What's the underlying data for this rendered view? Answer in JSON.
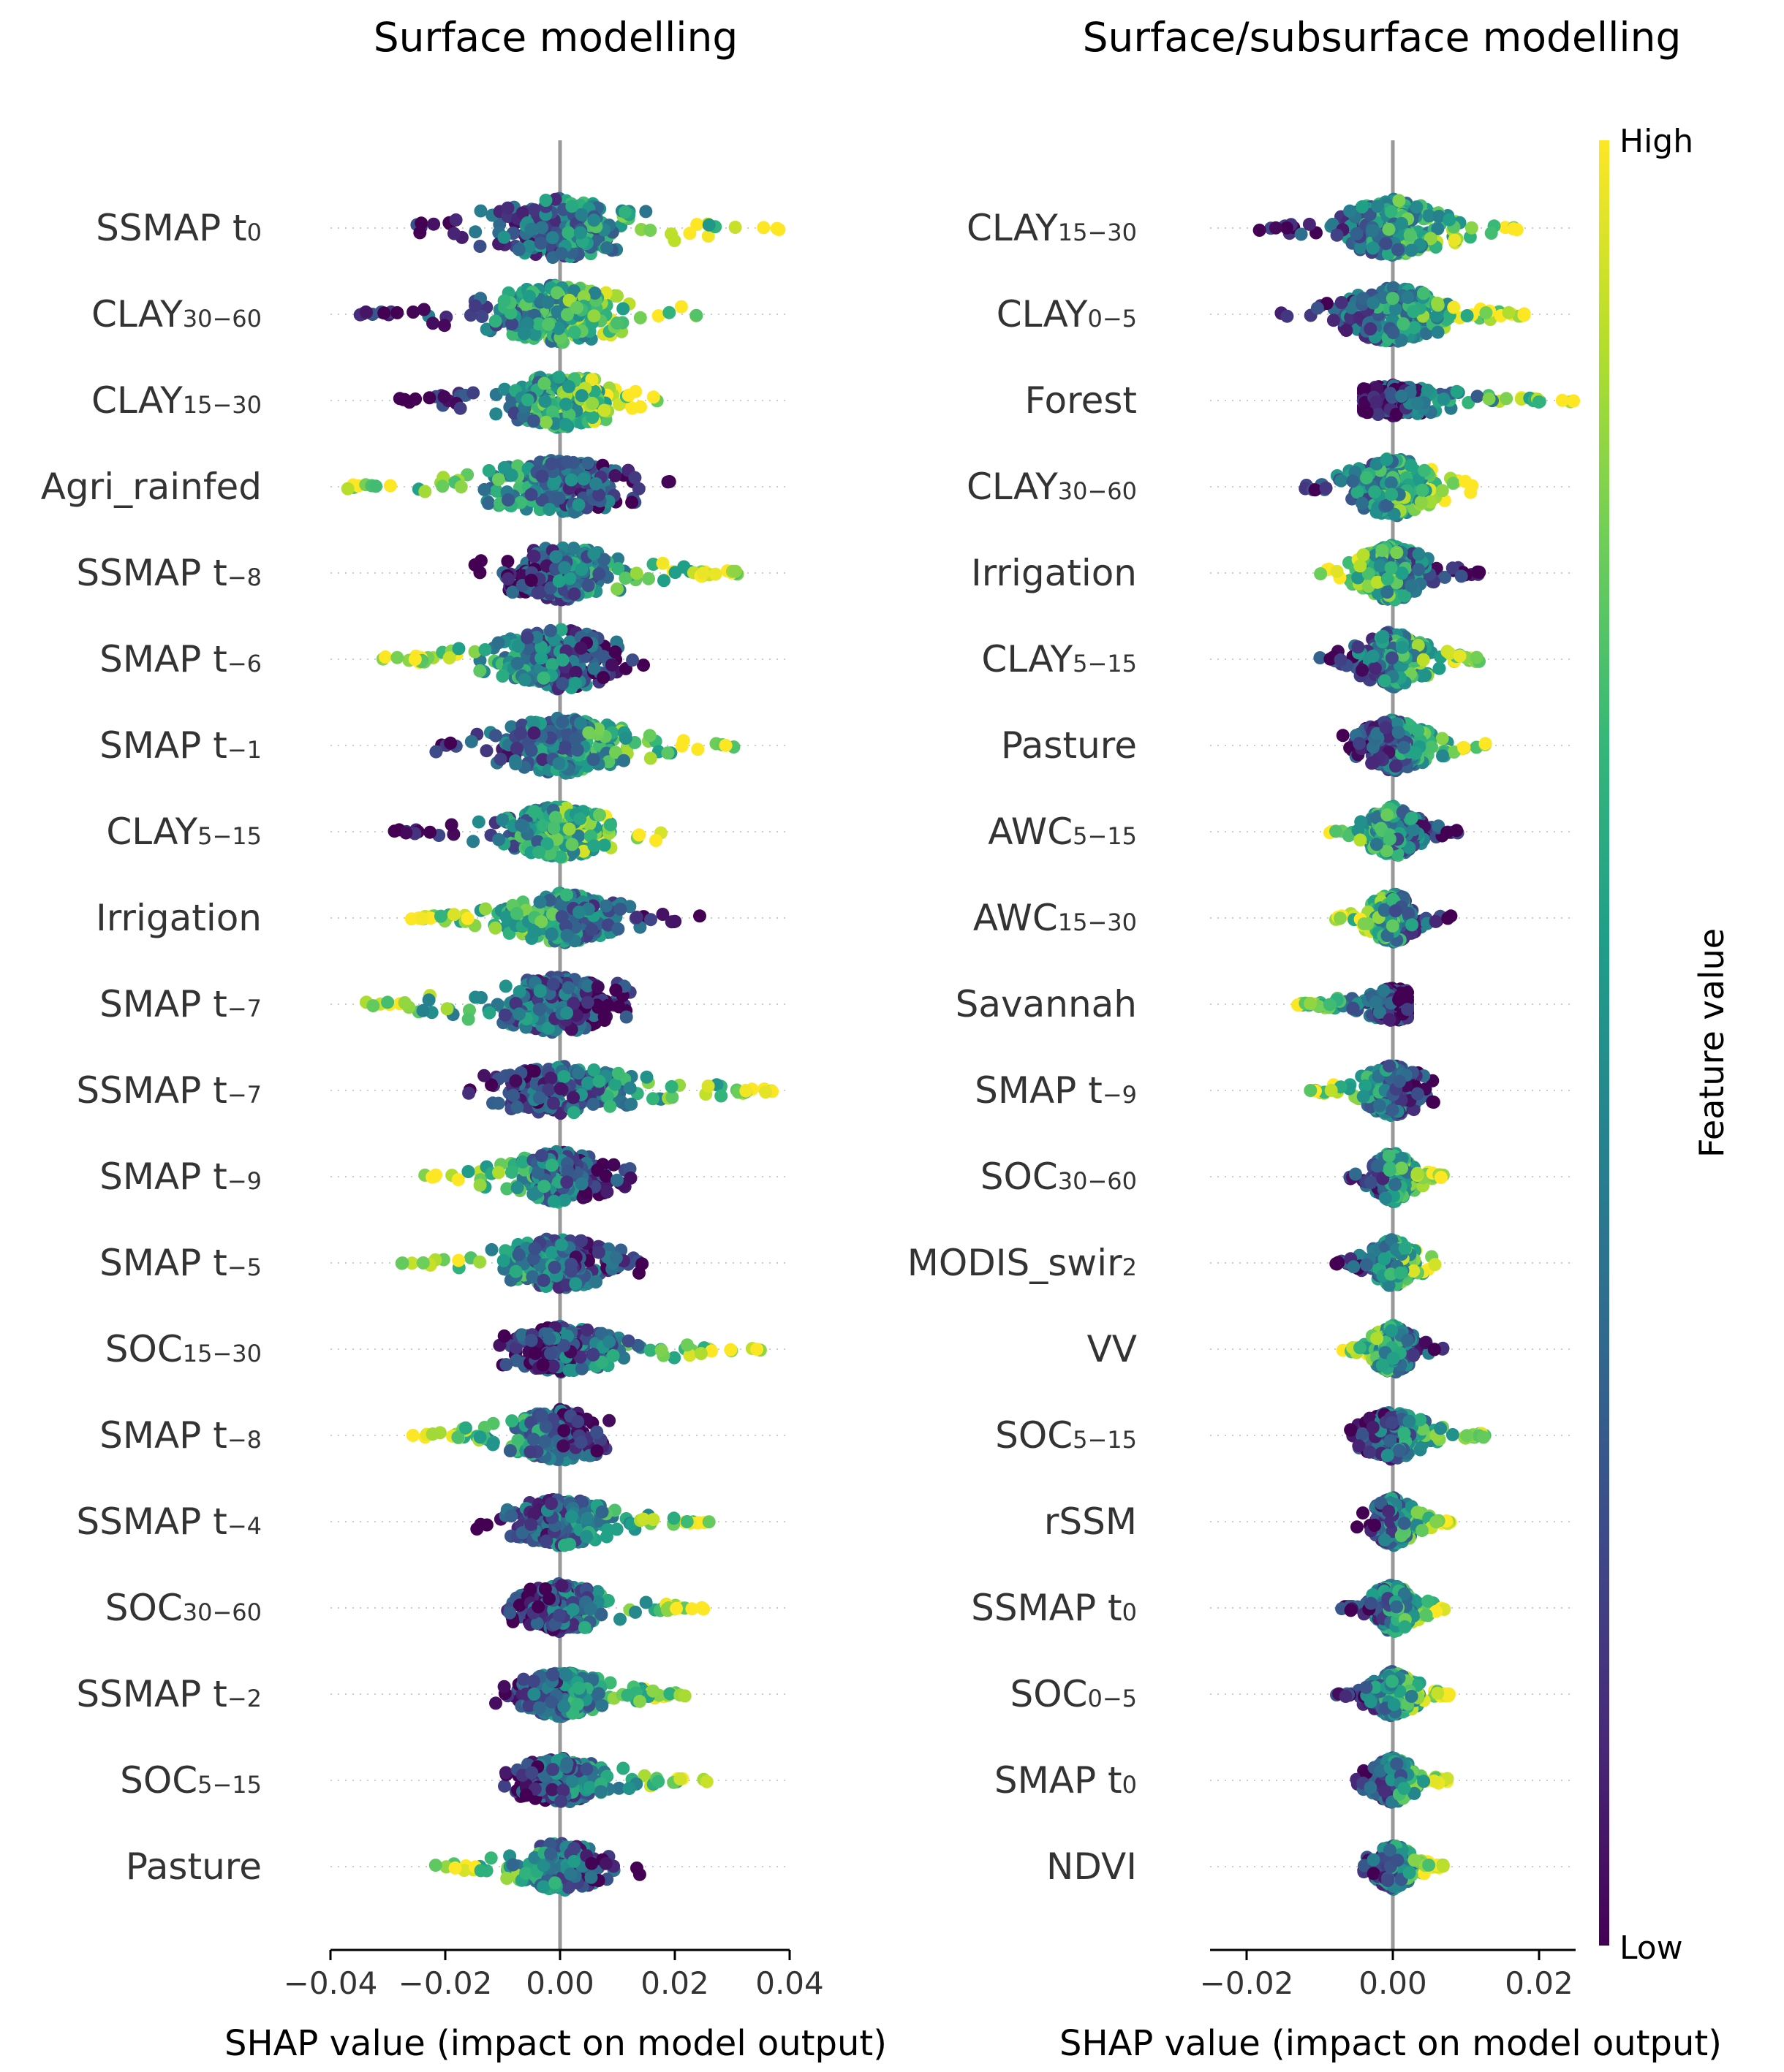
{
  "chart_data": [
    {
      "type": "scatter",
      "subtype": "shap-beeswarm",
      "title": "Surface modelling",
      "xlabel": "SHAP value (impact on model output)",
      "xlim": [
        -0.04,
        0.04
      ],
      "xticks": [
        -0.04,
        -0.02,
        0.0,
        0.02,
        0.04
      ],
      "xtick_labels": [
        "−0.04",
        "−0.02",
        "0.00",
        "0.02",
        "0.04"
      ],
      "features": [
        {
          "name": "SSMAP t",
          "sub": "0",
          "min": -0.025,
          "max": 0.039,
          "lowSide": "left",
          "widthMul": 1.0
        },
        {
          "name": "CLAY",
          "sub": "30−60",
          "min": -0.035,
          "max": 0.024,
          "lowSide": "left",
          "widthMul": 1.0
        },
        {
          "name": "CLAY",
          "sub": "15−30",
          "min": -0.028,
          "max": 0.017,
          "lowSide": "left",
          "widthMul": 0.9
        },
        {
          "name": "Agri_rainfed",
          "sub": "",
          "min": -0.037,
          "max": 0.02,
          "lowSide": "right",
          "widthMul": 0.9
        },
        {
          "name": "SSMAP t",
          "sub": "−8",
          "min": -0.015,
          "max": 0.031,
          "lowSide": "left",
          "widthMul": 0.9
        },
        {
          "name": "SMAP t",
          "sub": "−6",
          "min": -0.031,
          "max": 0.016,
          "lowSide": "right",
          "widthMul": 1.0
        },
        {
          "name": "SMAP t",
          "sub": "−1",
          "min": -0.023,
          "max": 0.031,
          "lowSide": "left",
          "widthMul": 0.95
        },
        {
          "name": "CLAY",
          "sub": "5−15",
          "min": -0.029,
          "max": 0.019,
          "lowSide": "left",
          "widthMul": 0.85
        },
        {
          "name": "Irrigation",
          "sub": "",
          "min": -0.026,
          "max": 0.025,
          "lowSide": "right",
          "widthMul": 0.85
        },
        {
          "name": "SMAP t",
          "sub": "−7",
          "min": -0.039,
          "max": 0.013,
          "lowSide": "right",
          "widthMul": 0.95
        },
        {
          "name": "SSMAP t",
          "sub": "−7",
          "min": -0.016,
          "max": 0.04,
          "lowSide": "left",
          "widthMul": 0.8
        },
        {
          "name": "SMAP t",
          "sub": "−9",
          "min": -0.024,
          "max": 0.013,
          "lowSide": "right",
          "widthMul": 0.85
        },
        {
          "name": "SMAP t",
          "sub": "−5",
          "min": -0.028,
          "max": 0.015,
          "lowSide": "right",
          "widthMul": 0.85
        },
        {
          "name": "SOC",
          "sub": "15−30",
          "min": -0.011,
          "max": 0.035,
          "lowSide": "left",
          "widthMul": 0.75
        },
        {
          "name": "SMAP t",
          "sub": "−8",
          "min": -0.026,
          "max": 0.01,
          "lowSide": "right",
          "widthMul": 0.85
        },
        {
          "name": "SSMAP t",
          "sub": "−4",
          "min": -0.015,
          "max": 0.026,
          "lowSide": "left",
          "widthMul": 0.8
        },
        {
          "name": "SOC",
          "sub": "30−60",
          "min": -0.01,
          "max": 0.025,
          "lowSide": "left",
          "widthMul": 0.8
        },
        {
          "name": "SSMAP t",
          "sub": "−2",
          "min": -0.012,
          "max": 0.023,
          "lowSide": "left",
          "widthMul": 0.75
        },
        {
          "name": "SOC",
          "sub": "5−15",
          "min": -0.011,
          "max": 0.026,
          "lowSide": "left",
          "widthMul": 0.75
        },
        {
          "name": "Pasture",
          "sub": "",
          "min": -0.023,
          "max": 0.014,
          "lowSide": "right",
          "widthMul": 0.8
        }
      ]
    },
    {
      "type": "scatter",
      "subtype": "shap-beeswarm",
      "title": "Surface/subsurface modelling",
      "xlabel": "SHAP value (impact on model output)",
      "xlim": [
        -0.025,
        0.025
      ],
      "xticks": [
        -0.02,
        0.0,
        0.02
      ],
      "xtick_labels": [
        "−0.02",
        "0.00",
        "0.02"
      ],
      "features": [
        {
          "name": "CLAY",
          "sub": "15−30",
          "min": -0.019,
          "max": 0.018,
          "lowSide": "left",
          "widthMul": 0.95
        },
        {
          "name": "CLAY",
          "sub": "0−5",
          "min": -0.016,
          "max": 0.018,
          "lowSide": "left",
          "widthMul": 0.95
        },
        {
          "name": "Forest",
          "sub": "",
          "min": -0.004,
          "max": 0.025,
          "lowSide": "left",
          "widthMul": 0.5
        },
        {
          "name": "CLAY",
          "sub": "30−60",
          "min": -0.015,
          "max": 0.012,
          "lowSide": "left",
          "widthMul": 1.0
        },
        {
          "name": "Irrigation",
          "sub": "",
          "min": -0.01,
          "max": 0.012,
          "lowSide": "right",
          "widthMul": 0.95
        },
        {
          "name": "CLAY",
          "sub": "5−15",
          "min": -0.011,
          "max": 0.012,
          "lowSide": "left",
          "widthMul": 0.95
        },
        {
          "name": "Pasture",
          "sub": "",
          "min": -0.007,
          "max": 0.013,
          "lowSide": "left",
          "widthMul": 0.85
        },
        {
          "name": "AWC",
          "sub": "5−15",
          "min": -0.009,
          "max": 0.009,
          "lowSide": "right",
          "widthMul": 0.85
        },
        {
          "name": "AWC",
          "sub": "15−30",
          "min": -0.008,
          "max": 0.008,
          "lowSide": "right",
          "widthMul": 0.85
        },
        {
          "name": "Savannah",
          "sub": "",
          "min": -0.013,
          "max": 0.002,
          "lowSide": "right",
          "widthMul": 0.55
        },
        {
          "name": "SMAP t",
          "sub": "−9",
          "min": -0.012,
          "max": 0.006,
          "lowSide": "right",
          "widthMul": 0.85
        },
        {
          "name": "SOC",
          "sub": "30−60",
          "min": -0.006,
          "max": 0.007,
          "lowSide": "left",
          "widthMul": 0.85
        },
        {
          "name": "MODIS_swir",
          "sub": "2",
          "min": -0.008,
          "max": 0.006,
          "lowSide": "left",
          "widthMul": 0.8
        },
        {
          "name": "VV",
          "sub": "",
          "min": -0.007,
          "max": 0.007,
          "lowSide": "right",
          "widthMul": 0.8
        },
        {
          "name": "SOC",
          "sub": "5−15",
          "min": -0.006,
          "max": 0.013,
          "lowSide": "left",
          "widthMul": 0.8
        },
        {
          "name": "rSSM",
          "sub": "",
          "min": -0.005,
          "max": 0.008,
          "lowSide": "left",
          "widthMul": 0.8
        },
        {
          "name": "SSMAP t",
          "sub": "0",
          "min": -0.007,
          "max": 0.008,
          "lowSide": "left",
          "widthMul": 0.8
        },
        {
          "name": "SOC",
          "sub": "0−5",
          "min": -0.008,
          "max": 0.008,
          "lowSide": "left",
          "widthMul": 0.75
        },
        {
          "name": "SMAP t",
          "sub": "0",
          "min": -0.005,
          "max": 0.008,
          "lowSide": "left",
          "widthMul": 0.75
        },
        {
          "name": "NDVI",
          "sub": "",
          "min": -0.005,
          "max": 0.007,
          "lowSide": "left",
          "widthMul": 0.75
        }
      ]
    }
  ],
  "colorbar": {
    "label": "Feature value",
    "high_label": "High",
    "low_label": "Low",
    "colors": [
      "#440154",
      "#482878",
      "#3e4989",
      "#31688e",
      "#26828e",
      "#1f9e89",
      "#35b779",
      "#6ece58",
      "#b5de2b",
      "#fde725"
    ]
  }
}
